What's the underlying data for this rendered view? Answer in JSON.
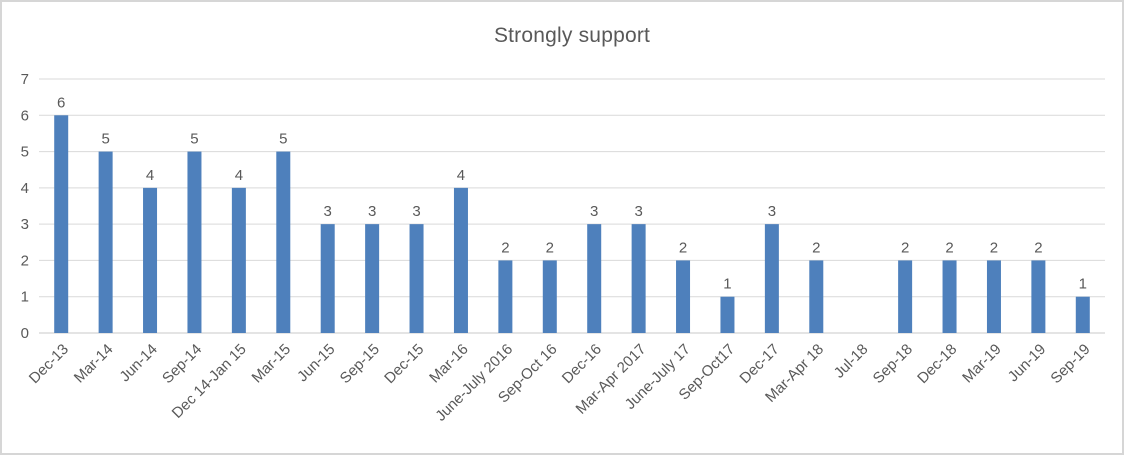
{
  "title": "Strongly support",
  "colors": {
    "bar": "#4e80bc",
    "text": "#595959",
    "gridline": "#d9d9d9",
    "axis_line": "#c9c9c9",
    "frame_border": "#d6d6d6",
    "background": "#ffffff"
  },
  "chart_data": {
    "type": "bar",
    "title": "Strongly support",
    "categories": [
      "Dec-13",
      "Mar-14",
      "Jun-14",
      "Sep-14",
      "Dec 14-Jan 15",
      "Mar-15",
      "Jun-15",
      "Sep-15",
      "Dec-15",
      "Mar-16",
      "June-July 2016",
      "Sep-Oct 16",
      "Dec-16",
      "Mar-Apr 2017",
      "June-July 17",
      "Sep-Oct17",
      "Dec-17",
      "Mar-Apr 18",
      "Jul-18",
      "Sep-18",
      "Dec-18",
      "Mar-19",
      "Jun-19",
      "Sep-19"
    ],
    "values": [
      6,
      5,
      4,
      5,
      4,
      5,
      3,
      3,
      3,
      4,
      2,
      2,
      3,
      3,
      2,
      1,
      3,
      2,
      null,
      2,
      2,
      2,
      2,
      1
    ],
    "xlabel": "",
    "ylabel": "",
    "ylim": [
      0,
      7
    ],
    "yticks": [
      0,
      1,
      2,
      3,
      4,
      5,
      6,
      7
    ],
    "grid": "horizontal",
    "legend": "none",
    "data_labels": true
  }
}
